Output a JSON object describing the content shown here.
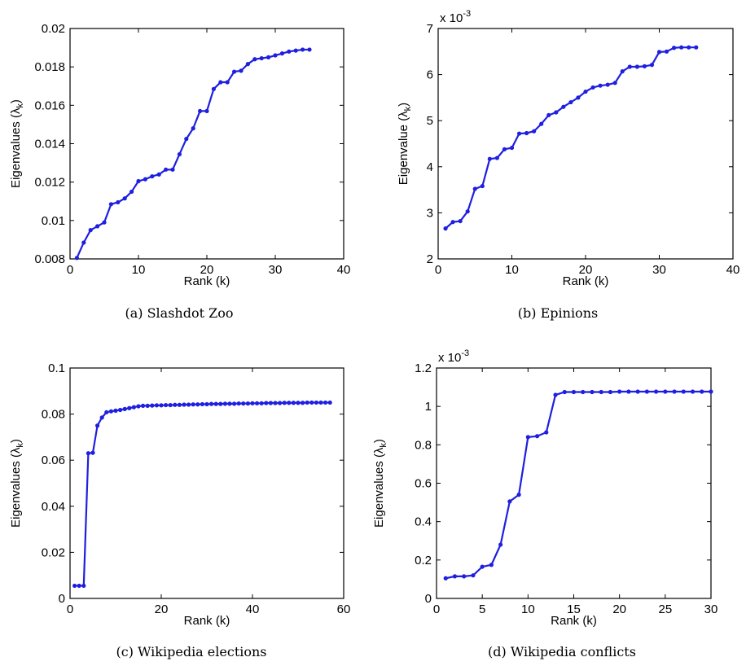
{
  "line_color": "#1f1fe0",
  "chart_data": [
    {
      "type": "line",
      "caption": "(a) Slashdot Zoo",
      "xlabel": "Rank (k)",
      "ylabel": "Eigenvalues (λ_k)",
      "xlim": [
        0,
        40
      ],
      "ylim": [
        0.008,
        0.02
      ],
      "xticks": [
        0,
        10,
        20,
        30,
        40
      ],
      "xtick_labels": [
        "0",
        "10",
        "20",
        "30",
        "40"
      ],
      "yticks": [
        0.008,
        0.01,
        0.012,
        0.014,
        0.016,
        0.018,
        0.02
      ],
      "ytick_labels": [
        "0.008",
        "0.01",
        "0.012",
        "0.014",
        "0.016",
        "0.018",
        "0.02"
      ],
      "exponent": "",
      "x": [
        1,
        2,
        3,
        4,
        5,
        6,
        7,
        8,
        9,
        10,
        11,
        12,
        13,
        14,
        15,
        16,
        17,
        18,
        19,
        20,
        21,
        22,
        23,
        24,
        25,
        26,
        27,
        28,
        29,
        30,
        31,
        32,
        33,
        34,
        35
      ],
      "y": [
        0.00805,
        0.00885,
        0.0095,
        0.0097,
        0.0099,
        0.01085,
        0.01095,
        0.01115,
        0.0115,
        0.01205,
        0.01215,
        0.0123,
        0.0124,
        0.01265,
        0.01265,
        0.01345,
        0.01425,
        0.0148,
        0.0157,
        0.0157,
        0.01685,
        0.0172,
        0.0172,
        0.01775,
        0.0178,
        0.01815,
        0.0184,
        0.01845,
        0.0185,
        0.0186,
        0.0187,
        0.0188,
        0.01885,
        0.0189,
        0.0189
      ]
    },
    {
      "type": "line",
      "caption": "(b) Epinions",
      "xlabel": "Rank (k)",
      "ylabel": "Eigenvalue (λ_k)",
      "xlim": [
        0,
        40
      ],
      "ylim": [
        2,
        7
      ],
      "xticks": [
        0,
        10,
        20,
        30,
        40
      ],
      "xtick_labels": [
        "0",
        "10",
        "20",
        "30",
        "40"
      ],
      "yticks": [
        2,
        3,
        4,
        5,
        6,
        7
      ],
      "ytick_labels": [
        "2",
        "3",
        "4",
        "5",
        "6",
        "7"
      ],
      "exponent": "x 10^-3",
      "x": [
        1,
        2,
        3,
        4,
        5,
        6,
        7,
        8,
        9,
        10,
        11,
        12,
        13,
        14,
        15,
        16,
        17,
        18,
        19,
        20,
        21,
        22,
        23,
        24,
        25,
        26,
        27,
        28,
        29,
        30,
        31,
        32,
        33,
        34,
        35
      ],
      "y": [
        2.66,
        2.8,
        2.82,
        3.03,
        3.52,
        3.58,
        4.17,
        4.19,
        4.38,
        4.41,
        4.72,
        4.73,
        4.77,
        4.93,
        5.12,
        5.18,
        5.3,
        5.4,
        5.5,
        5.63,
        5.72,
        5.76,
        5.78,
        5.82,
        6.07,
        6.17,
        6.17,
        6.18,
        6.21,
        6.49,
        6.5,
        6.58,
        6.59,
        6.59,
        6.59
      ]
    },
    {
      "type": "line",
      "caption": "(c) Wikipedia elections",
      "xlabel": "Rank (k)",
      "ylabel": "Eigenvalues (λ_k)",
      "xlim": [
        0,
        60
      ],
      "ylim": [
        0,
        0.1
      ],
      "xticks": [
        0,
        20,
        40,
        60
      ],
      "xtick_labels": [
        "0",
        "20",
        "40",
        "60"
      ],
      "yticks": [
        0,
        0.02,
        0.04,
        0.06,
        0.08,
        0.1
      ],
      "ytick_labels": [
        "0",
        "0.02",
        "0.04",
        "0.06",
        "0.08",
        "0.1"
      ],
      "exponent": "",
      "x": [
        1,
        2,
        3,
        4,
        5,
        6,
        7,
        8,
        9,
        10,
        11,
        12,
        13,
        14,
        15,
        16,
        17,
        18,
        19,
        20,
        21,
        22,
        23,
        24,
        25,
        26,
        27,
        28,
        29,
        30,
        31,
        32,
        33,
        34,
        35,
        36,
        37,
        38,
        39,
        40,
        41,
        42,
        43,
        44,
        45,
        46,
        47,
        48,
        49,
        50,
        51,
        52,
        53,
        54,
        55,
        56,
        57
      ],
      "y": [
        0.0055,
        0.0055,
        0.0055,
        0.063,
        0.0632,
        0.075,
        0.0785,
        0.0808,
        0.0812,
        0.0815,
        0.0818,
        0.0822,
        0.0826,
        0.083,
        0.0834,
        0.0836,
        0.0836,
        0.0837,
        0.0838,
        0.0838,
        0.0839,
        0.0839,
        0.084,
        0.084,
        0.0841,
        0.0841,
        0.0842,
        0.0842,
        0.0843,
        0.0843,
        0.0844,
        0.0844,
        0.0844,
        0.0845,
        0.0845,
        0.0845,
        0.0846,
        0.0846,
        0.0846,
        0.0847,
        0.0847,
        0.0847,
        0.0848,
        0.0848,
        0.0848,
        0.0848,
        0.0849,
        0.0849,
        0.0849,
        0.0849,
        0.0849,
        0.085,
        0.085,
        0.085,
        0.085,
        0.085,
        0.085
      ]
    },
    {
      "type": "line",
      "caption": "(d) Wikipedia conflicts",
      "xlabel": "Rank (k)",
      "ylabel": "Eigenvalues (λ_k)",
      "xlim": [
        0,
        30
      ],
      "ylim": [
        0,
        1.2
      ],
      "xticks": [
        0,
        5,
        10,
        15,
        20,
        25,
        30
      ],
      "xtick_labels": [
        "0",
        "5",
        "10",
        "15",
        "20",
        "25",
        "30"
      ],
      "yticks": [
        0,
        0.2,
        0.4,
        0.6,
        0.8,
        1,
        1.2
      ],
      "ytick_labels": [
        "0",
        "0.2",
        "0.4",
        "0.6",
        "0.8",
        "1",
        "1.2"
      ],
      "exponent": "x 10^-3",
      "x": [
        1,
        2,
        3,
        4,
        5,
        6,
        7,
        8,
        9,
        10,
        11,
        12,
        13,
        14,
        15,
        16,
        17,
        18,
        19,
        20,
        21,
        22,
        23,
        24,
        25,
        26,
        27,
        28,
        29,
        30
      ],
      "y": [
        0.105,
        0.115,
        0.115,
        0.12,
        0.165,
        0.175,
        0.28,
        0.505,
        0.54,
        0.84,
        0.845,
        0.865,
        1.06,
        1.075,
        1.075,
        1.075,
        1.075,
        1.075,
        1.075,
        1.077,
        1.077,
        1.077,
        1.077,
        1.077,
        1.077,
        1.077,
        1.077,
        1.077,
        1.077,
        1.077
      ]
    }
  ]
}
